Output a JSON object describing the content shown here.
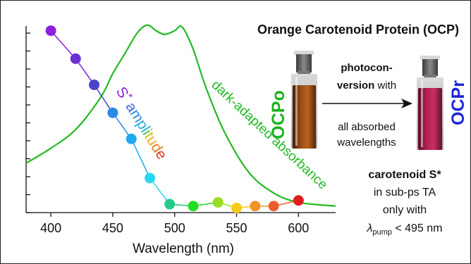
{
  "title": "Orange Carotenoid Protein (OCP)",
  "state_dark": "OCPo",
  "state_light": "OCPr",
  "conversion": {
    "line1": "photocon-",
    "line2_bold": "version",
    "line2_rest": " with",
    "line3": "all absorbed",
    "line4": "wavelengths"
  },
  "note": {
    "line1": "carotenoid S*",
    "line2": "in sub-ps TA",
    "line3": "only with",
    "lambda": "λ",
    "sub": "pump",
    "rest": " < 495 nm"
  },
  "colors": {
    "absorbance": "#22bb22",
    "ocpo_text": "#19b31c",
    "ocpr_text": "#1b27d8",
    "dark_vial": "#8a4210",
    "light_vial": "#b0204e"
  },
  "chart_data": {
    "type": "line",
    "xlabel": "Wavelength (nm)",
    "ylabel": "",
    "xlim": [
      380,
      630
    ],
    "ylim": [
      0,
      1
    ],
    "xticks": [
      400,
      450,
      500,
      550,
      600
    ],
    "y_tick_labels": false,
    "series": [
      {
        "name": "S* amplitude",
        "label_parts": [
          "S",
          "*",
          " ",
          "a",
          "m",
          "p",
          "l",
          "i",
          "t",
          "u",
          "d",
          "e"
        ],
        "x": [
          400,
          420,
          435,
          450,
          465,
          480,
          496,
          515,
          535,
          550,
          565,
          580,
          600
        ],
        "y": [
          0.96,
          0.81,
          0.67,
          0.52,
          0.38,
          0.17,
          0.03,
          0.02,
          0.04,
          0.01,
          0.02,
          0.02,
          0.05
        ],
        "colors": [
          "#8b1ee0",
          "#6b2fd0",
          "#4a44c8",
          "#2a8ae2",
          "#20aaf2",
          "#28d8f0",
          "#22cc88",
          "#22dd22",
          "#99dd22",
          "#f6cb18",
          "#f19426",
          "#ee5b2a",
          "#dd1e1e"
        ],
        "label_colors": [
          "#8b1ee0",
          "#8b1ee0",
          "#5c3cc8",
          "#3d6be0",
          "#2a8ae2",
          "#1faee0",
          "#22b8b0",
          "#44bb44",
          "#c9c21a",
          "#f6a818",
          "#f07a28",
          "#e23a24"
        ]
      },
      {
        "name": "dark-adapted absorbance",
        "x": [
          380,
          400,
          420,
          440,
          450,
          460,
          470,
          478,
          485,
          492,
          500,
          506,
          515,
          525,
          540,
          560,
          580,
          600,
          630
        ],
        "y": [
          0.25,
          0.33,
          0.43,
          0.6,
          0.73,
          0.84,
          0.95,
          0.99,
          0.96,
          0.94,
          0.96,
          0.98,
          0.86,
          0.66,
          0.42,
          0.2,
          0.09,
          0.04,
          0.02
        ]
      }
    ]
  }
}
